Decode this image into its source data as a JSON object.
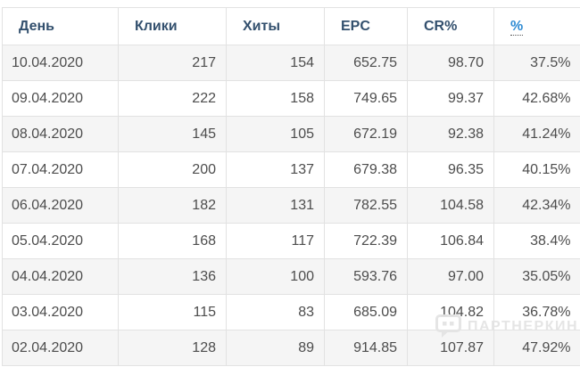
{
  "table": {
    "columns": [
      {
        "key": "day",
        "label": "День"
      },
      {
        "key": "clicks",
        "label": "Клики"
      },
      {
        "key": "hits",
        "label": "Хиты"
      },
      {
        "key": "epc",
        "label": "EPC"
      },
      {
        "key": "cr",
        "label": "CR%"
      },
      {
        "key": "percent",
        "label": "%"
      }
    ],
    "rows": [
      {
        "day": "10.04.2020",
        "clicks": "217",
        "hits": "154",
        "epc": "652.75",
        "cr": "98.70",
        "percent": "37.5%"
      },
      {
        "day": "09.04.2020",
        "clicks": "222",
        "hits": "158",
        "epc": "749.65",
        "cr": "99.37",
        "percent": "42.68%"
      },
      {
        "day": "08.04.2020",
        "clicks": "145",
        "hits": "105",
        "epc": "672.19",
        "cr": "92.38",
        "percent": "41.24%"
      },
      {
        "day": "07.04.2020",
        "clicks": "200",
        "hits": "137",
        "epc": "679.38",
        "cr": "96.35",
        "percent": "40.15%"
      },
      {
        "day": "06.04.2020",
        "clicks": "182",
        "hits": "131",
        "epc": "782.55",
        "cr": "104.58",
        "percent": "42.34%"
      },
      {
        "day": "05.04.2020",
        "clicks": "168",
        "hits": "117",
        "epc": "722.39",
        "cr": "106.84",
        "percent": "38.4%"
      },
      {
        "day": "04.04.2020",
        "clicks": "136",
        "hits": "100",
        "epc": "593.76",
        "cr": "97.00",
        "percent": "35.05%"
      },
      {
        "day": "03.04.2020",
        "clicks": "115",
        "hits": "83",
        "epc": "685.09",
        "cr": "104.82",
        "percent": "36.78%"
      },
      {
        "day": "02.04.2020",
        "clicks": "128",
        "hits": "89",
        "epc": "914.85",
        "cr": "107.87",
        "percent": "47.92%"
      }
    ]
  },
  "watermark": {
    "text": "ПАРТНЕРКИН",
    "icon": "speech-bubble-logo-icon"
  },
  "colors": {
    "header_text": "#33506e",
    "link_blue": "#2e8bd3",
    "cell_text": "#4d4d4d",
    "stripe": "#f5f5f5",
    "border": "#e2e2e2",
    "watermark": "#e4e4e4"
  }
}
